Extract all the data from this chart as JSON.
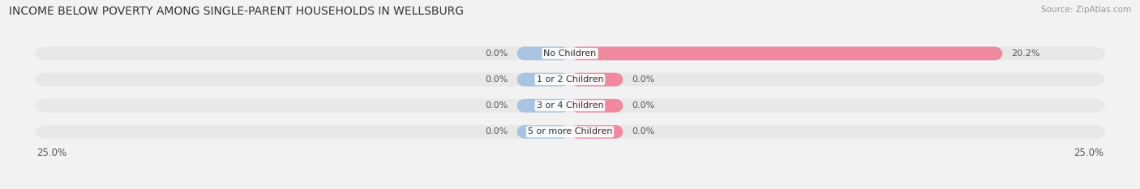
{
  "title": "INCOME BELOW POVERTY AMONG SINGLE-PARENT HOUSEHOLDS IN WELLSBURG",
  "source": "Source: ZipAtlas.com",
  "categories": [
    "No Children",
    "1 or 2 Children",
    "3 or 4 Children",
    "5 or more Children"
  ],
  "single_father": [
    0.0,
    0.0,
    0.0,
    0.0
  ],
  "single_mother": [
    20.2,
    0.0,
    0.0,
    0.0
  ],
  "xlim": 25.0,
  "min_bar_width": 2.5,
  "father_color": "#a8c4e0",
  "mother_color": "#f0899e",
  "bar_height": 0.52,
  "bg_color": "#f2f2f2",
  "bar_bg_color": "#e2e2e2",
  "row_bg_color": "#e8e8e8",
  "title_fontsize": 10.0,
  "label_fontsize": 8.0,
  "cat_fontsize": 8.0,
  "tick_fontsize": 8.5,
  "source_fontsize": 7.5
}
